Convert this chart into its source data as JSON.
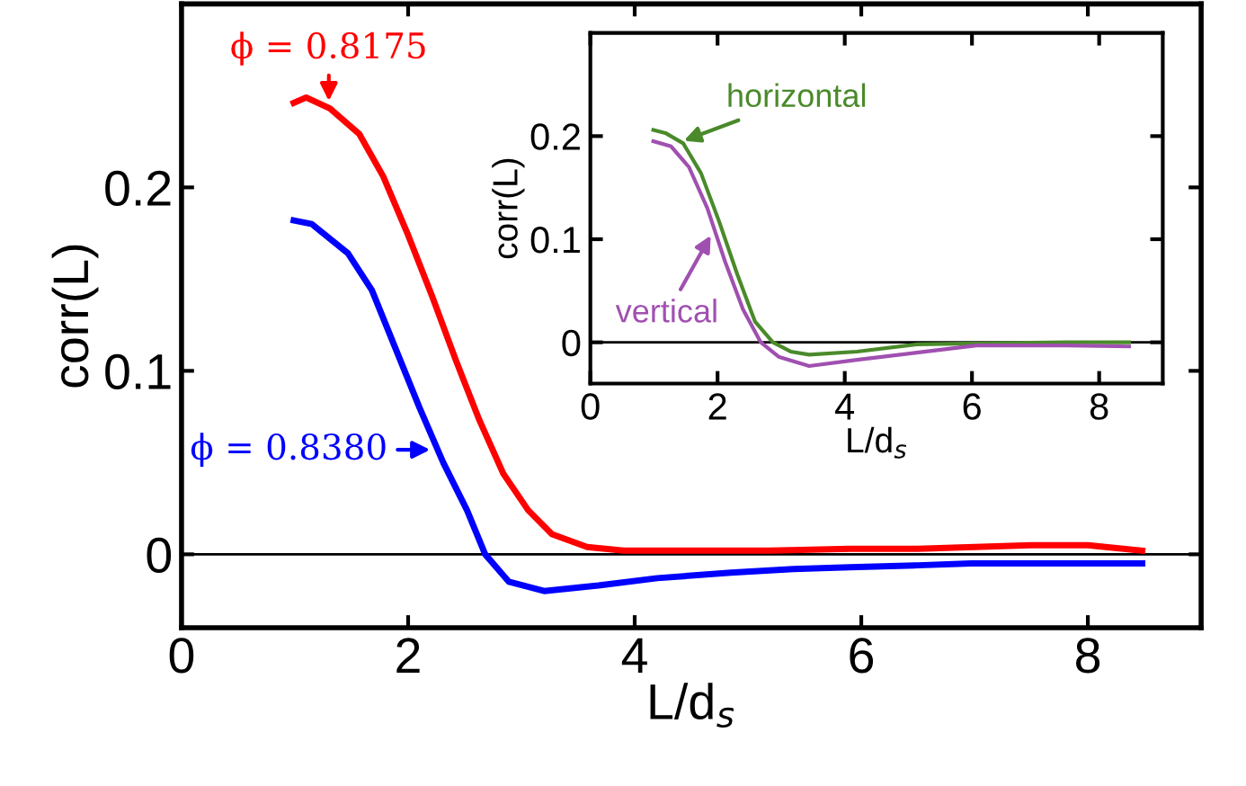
{
  "chart_data": [
    {
      "type": "line",
      "xlabel": "L/d$_{s}$",
      "ylabel": "corr(L)",
      "xlim": [
        0,
        9
      ],
      "ylim": [
        -0.04,
        0.3
      ],
      "xticks": [
        0,
        2,
        4,
        6,
        8
      ],
      "yticks": [
        0,
        0.1,
        0.2
      ],
      "grid": false,
      "legend": false,
      "marker": "none",
      "line_style": "solid",
      "ref_lines": [
        {
          "axis": "y",
          "value": 0,
          "color": "#000000",
          "line_style": "solid"
        }
      ],
      "annotations": [
        {
          "text": "ϕ = 0.8175",
          "x": 1.3,
          "y": 0.243
        },
        {
          "text": "ϕ = 0.8380",
          "x": 2.26,
          "y": 0.057
        }
      ],
      "series": [
        {
          "color": "#ff0000",
          "x": [
            0.99,
            1.1,
            1.31,
            1.57,
            1.78,
            2.0,
            2.21,
            2.42,
            2.63,
            2.84,
            3.06,
            3.27,
            3.58,
            3.9,
            4.5,
            5.2,
            5.9,
            6.5,
            7.0,
            7.5,
            8.0,
            8.48
          ],
          "values": [
            0.246,
            0.249,
            0.243,
            0.229,
            0.206,
            0.174,
            0.141,
            0.106,
            0.073,
            0.044,
            0.024,
            0.011,
            0.004,
            0.002,
            0.002,
            0.002,
            0.003,
            0.003,
            0.004,
            0.005,
            0.005,
            0.002
          ]
        },
        {
          "color": "#0000ff",
          "x": [
            0.99,
            1.15,
            1.47,
            1.68,
            1.89,
            2.1,
            2.31,
            2.52,
            2.68,
            2.89,
            3.2,
            3.68,
            4.2,
            4.85,
            5.4,
            5.9,
            6.5,
            6.97,
            7.6,
            8.48
          ],
          "values": [
            0.182,
            0.18,
            0.164,
            0.144,
            0.112,
            0.08,
            0.05,
            0.024,
            0.0,
            -0.015,
            -0.02,
            -0.017,
            -0.013,
            -0.01,
            -0.008,
            -0.007,
            -0.006,
            -0.005,
            -0.005,
            -0.005
          ]
        }
      ]
    },
    {
      "type": "line",
      "xlabel": "L/d$_{s}$",
      "ylabel": "corr(L)",
      "xlim": [
        0,
        9
      ],
      "ylim": [
        -0.04,
        0.3
      ],
      "xticks": [
        0,
        2,
        4,
        6,
        8
      ],
      "yticks": [
        0,
        0.1,
        0.2
      ],
      "grid": false,
      "legend": false,
      "marker": "none",
      "line_style": "solid",
      "ref_lines": [
        {
          "axis": "y",
          "value": 0,
          "color": "#000000",
          "line_style": "solid"
        }
      ],
      "annotations": [
        {
          "text": "horizontal",
          "x": 1.36,
          "y": 0.193
        },
        {
          "text": "vertical",
          "x": 1.95,
          "y": 0.11
        }
      ],
      "series": [
        {
          "color": "#4a8a2a",
          "x": [
            0.99,
            1.18,
            1.46,
            1.74,
            2.02,
            2.31,
            2.59,
            2.87,
            3.15,
            3.44,
            4.19,
            5.13,
            6.07,
            7.48,
            8.47
          ],
          "values": [
            0.206,
            0.203,
            0.193,
            0.164,
            0.118,
            0.066,
            0.02,
            0.0,
            -0.009,
            -0.012,
            -0.009,
            -0.002,
            -0.001,
            0.0,
            0.0
          ]
        },
        {
          "color": "#a050b0",
          "x": [
            0.99,
            1.27,
            1.55,
            1.84,
            2.12,
            2.4,
            2.68,
            2.96,
            3.44,
            4.19,
            5.13,
            6.07,
            7.48,
            8.47
          ],
          "values": [
            0.195,
            0.19,
            0.17,
            0.13,
            0.078,
            0.032,
            0.0,
            -0.014,
            -0.023,
            -0.017,
            -0.01,
            -0.003,
            -0.003,
            -0.004
          ]
        }
      ]
    }
  ]
}
